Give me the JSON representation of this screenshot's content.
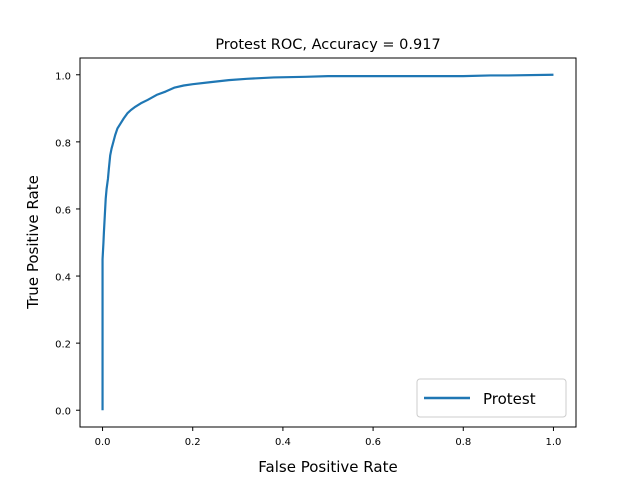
{
  "chart_data": {
    "type": "line",
    "title": "Protest ROC, Accuracy = 0.917",
    "xlabel": "False Positive Rate",
    "ylabel": "True Positive Rate",
    "xlim": [
      -0.05,
      1.05
    ],
    "ylim": [
      -0.05,
      1.05
    ],
    "xticks": [
      "0.0",
      "0.2",
      "0.4",
      "0.6",
      "0.8",
      "1.0"
    ],
    "yticks": [
      "0.0",
      "0.2",
      "0.4",
      "0.6",
      "0.8",
      "1.0"
    ],
    "grid": false,
    "legend": {
      "position": "bottom-right",
      "entries": [
        "Protest"
      ]
    },
    "series": [
      {
        "name": "Protest",
        "color": "#1f77b4",
        "x": [
          0.0,
          0.0,
          0.0,
          0.002,
          0.003,
          0.005,
          0.007,
          0.009,
          0.012,
          0.014,
          0.017,
          0.02,
          0.024,
          0.028,
          0.033,
          0.04,
          0.047,
          0.055,
          0.063,
          0.073,
          0.085,
          0.1,
          0.12,
          0.14,
          0.16,
          0.18,
          0.2,
          0.24,
          0.28,
          0.32,
          0.38,
          0.45,
          0.5,
          0.6,
          0.7,
          0.8,
          0.86,
          0.9,
          1.0
        ],
        "y": [
          0.0,
          0.2,
          0.45,
          0.5,
          0.53,
          0.58,
          0.63,
          0.66,
          0.69,
          0.72,
          0.76,
          0.78,
          0.8,
          0.82,
          0.84,
          0.855,
          0.87,
          0.885,
          0.895,
          0.905,
          0.915,
          0.925,
          0.94,
          0.95,
          0.962,
          0.968,
          0.972,
          0.978,
          0.984,
          0.988,
          0.992,
          0.994,
          0.996,
          0.996,
          0.996,
          0.996,
          0.998,
          0.998,
          1.0
        ]
      }
    ]
  }
}
